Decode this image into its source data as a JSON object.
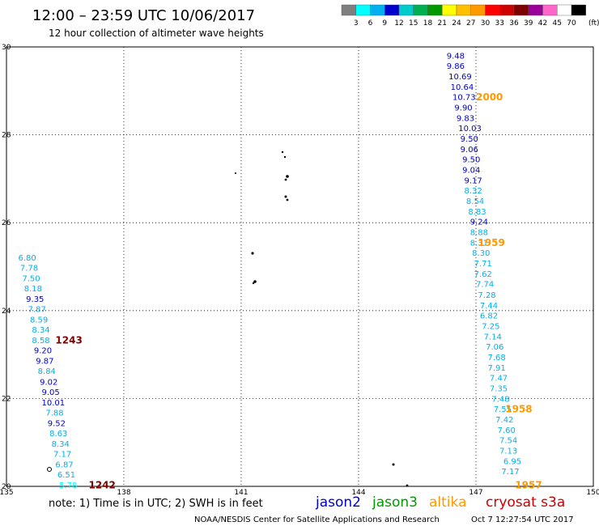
{
  "header": {
    "title": "12:00 – 23:59 UTC 10/06/2017",
    "subtitle": "12 hour collection of altimeter wave heights"
  },
  "color_scale": {
    "labels": [
      "3",
      "6",
      "9",
      "12",
      "15",
      "18",
      "21",
      "24",
      "27",
      "30",
      "33",
      "36",
      "39",
      "42",
      "45",
      "70"
    ],
    "unit": "(ft)",
    "colors": [
      "#7f7f7f",
      "#00ffff",
      "#00b0f0",
      "#0000cc",
      "#00cccc",
      "#00b050",
      "#009900",
      "#ffff00",
      "#ffc000",
      "#ff9900",
      "#ff0000",
      "#cc0000",
      "#7f0000",
      "#990099",
      "#ff66cc",
      "#ffffff",
      "#000000"
    ]
  },
  "footer": {
    "note": "note:  1) Time is in UTC; 2) SWH is in feet",
    "legend": [
      {
        "name": "jason2",
        "color": "#0000cc"
      },
      {
        "name": "jason3",
        "color": "#009900"
      },
      {
        "name": "altika",
        "color": "#ff9900"
      },
      {
        "name": "cryosat s3a",
        "color": "#cc0000"
      }
    ],
    "credit": "NOAA/NESDIS Center for Satellite Applications and Research",
    "timestamp": "Oct  7 12:27:54 UTC 2017"
  },
  "chart_data": {
    "type": "scatter",
    "xlim": [
      135,
      150
    ],
    "ylim": [
      20,
      30
    ],
    "x_ticks": [
      135,
      138,
      141,
      144,
      147,
      150
    ],
    "y_ticks": [
      20,
      22,
      24,
      26,
      28,
      30
    ],
    "grid": true,
    "track_right": {
      "points": [
        {
          "x": 146.25,
          "y": 29.8,
          "v": "9.48",
          "c": "#0000cc"
        },
        {
          "x": 146.25,
          "y": 29.57,
          "v": "9.86",
          "c": "#0000cc"
        },
        {
          "x": 146.3,
          "y": 29.33,
          "v": "10.69",
          "c": "#0000cc"
        },
        {
          "x": 146.35,
          "y": 29.09,
          "v": "10.64",
          "c": "#0000cc"
        },
        {
          "x": 146.4,
          "y": 28.86,
          "v": "10.73",
          "c": "#0000cc"
        },
        {
          "x": 146.45,
          "y": 28.62,
          "v": "9.90",
          "c": "#0000cc"
        },
        {
          "x": 146.5,
          "y": 28.38,
          "v": "9.83",
          "c": "#0000cc"
        },
        {
          "x": 146.55,
          "y": 28.15,
          "v": "10.03",
          "c": "#0000cc"
        },
        {
          "x": 146.6,
          "y": 27.91,
          "v": "9.50",
          "c": "#0000cc"
        },
        {
          "x": 146.6,
          "y": 27.67,
          "v": "9.06",
          "c": "#0000cc"
        },
        {
          "x": 146.65,
          "y": 27.44,
          "v": "9.50",
          "c": "#0000cc"
        },
        {
          "x": 146.65,
          "y": 27.2,
          "v": "9.04",
          "c": "#0000cc"
        },
        {
          "x": 146.7,
          "y": 26.96,
          "v": "9.17",
          "c": "#0000cc"
        },
        {
          "x": 146.7,
          "y": 26.73,
          "v": "8.32",
          "c": "#00b0f0"
        },
        {
          "x": 146.75,
          "y": 26.49,
          "v": "8.54",
          "c": "#00b0f0"
        },
        {
          "x": 146.8,
          "y": 26.25,
          "v": "8.83",
          "c": "#00b0f0"
        },
        {
          "x": 146.85,
          "y": 26.02,
          "v": "9.24",
          "c": "#0000cc"
        },
        {
          "x": 146.85,
          "y": 25.78,
          "v": "8.88",
          "c": "#00b0f0"
        },
        {
          "x": 146.85,
          "y": 25.54,
          "v": "8.31",
          "c": "#00b0f0"
        },
        {
          "x": 146.9,
          "y": 25.31,
          "v": "8.30",
          "c": "#00b0f0"
        },
        {
          "x": 146.95,
          "y": 25.07,
          "v": "7.71",
          "c": "#00b0f0"
        },
        {
          "x": 146.95,
          "y": 24.83,
          "v": "7.62",
          "c": "#00b0f0"
        },
        {
          "x": 147.0,
          "y": 24.6,
          "v": "7.74",
          "c": "#00b0f0"
        },
        {
          "x": 147.05,
          "y": 24.36,
          "v": "7.28",
          "c": "#00b0f0"
        },
        {
          "x": 147.1,
          "y": 24.12,
          "v": "7.44",
          "c": "#00b0f0"
        },
        {
          "x": 147.1,
          "y": 23.89,
          "v": "6.82",
          "c": "#00b0f0"
        },
        {
          "x": 147.15,
          "y": 23.65,
          "v": "7.25",
          "c": "#00b0f0"
        },
        {
          "x": 147.2,
          "y": 23.41,
          "v": "7.14",
          "c": "#00b0f0"
        },
        {
          "x": 147.25,
          "y": 23.18,
          "v": "7.06",
          "c": "#00b0f0"
        },
        {
          "x": 147.3,
          "y": 22.94,
          "v": "7.68",
          "c": "#00b0f0"
        },
        {
          "x": 147.3,
          "y": 22.7,
          "v": "7.91",
          "c": "#00b0f0"
        },
        {
          "x": 147.35,
          "y": 22.47,
          "v": "7.47",
          "c": "#00b0f0"
        },
        {
          "x": 147.35,
          "y": 22.23,
          "v": "7.35",
          "c": "#00b0f0"
        },
        {
          "x": 147.4,
          "y": 21.99,
          "v": "7.48",
          "c": "#00b0f0"
        },
        {
          "x": 147.45,
          "y": 21.76,
          "v": "7.55",
          "c": "#00b0f0"
        },
        {
          "x": 147.5,
          "y": 21.52,
          "v": "7.42",
          "c": "#00b0f0"
        },
        {
          "x": 147.55,
          "y": 21.28,
          "v": "7.60",
          "c": "#00b0f0"
        },
        {
          "x": 147.6,
          "y": 21.05,
          "v": "7.54",
          "c": "#00b0f0"
        },
        {
          "x": 147.6,
          "y": 20.81,
          "v": "7.13",
          "c": "#00b0f0"
        },
        {
          "x": 147.7,
          "y": 20.57,
          "v": "6.95",
          "c": "#00b0f0"
        },
        {
          "x": 147.65,
          "y": 20.34,
          "v": "7.17",
          "c": "#00b0f0"
        }
      ]
    },
    "track_left": {
      "points": [
        {
          "x": 135.3,
          "y": 25.2,
          "v": "6.80",
          "c": "#00b0f0"
        },
        {
          "x": 135.35,
          "y": 24.97,
          "v": "7.78",
          "c": "#00b0f0"
        },
        {
          "x": 135.4,
          "y": 24.73,
          "v": "7.50",
          "c": "#00b0f0"
        },
        {
          "x": 135.45,
          "y": 24.5,
          "v": "8.18",
          "c": "#00b0f0"
        },
        {
          "x": 135.5,
          "y": 24.26,
          "v": "9.35",
          "c": "#0000cc"
        },
        {
          "x": 135.55,
          "y": 24.03,
          "v": "7.87",
          "c": "#00b0f0"
        },
        {
          "x": 135.6,
          "y": 23.79,
          "v": "8.59",
          "c": "#00b0f0"
        },
        {
          "x": 135.65,
          "y": 23.56,
          "v": "8.34",
          "c": "#00b0f0"
        },
        {
          "x": 135.65,
          "y": 23.32,
          "v": "8.58",
          "c": "#00b0f0"
        },
        {
          "x": 135.7,
          "y": 23.09,
          "v": "9.20",
          "c": "#0000cc"
        },
        {
          "x": 135.75,
          "y": 22.85,
          "v": "9.87",
          "c": "#0000cc"
        },
        {
          "x": 135.8,
          "y": 22.62,
          "v": "8.84",
          "c": "#00b0f0"
        },
        {
          "x": 135.85,
          "y": 22.38,
          "v": "9.02",
          "c": "#0000cc"
        },
        {
          "x": 135.9,
          "y": 22.15,
          "v": "9.05",
          "c": "#0000cc"
        },
        {
          "x": 135.9,
          "y": 21.91,
          "v": "10.01",
          "c": "#0000cc"
        },
        {
          "x": 136.0,
          "y": 21.68,
          "v": "7.88",
          "c": "#00b0f0"
        },
        {
          "x": 136.05,
          "y": 21.44,
          "v": "9.52",
          "c": "#0000cc"
        },
        {
          "x": 136.1,
          "y": 21.21,
          "v": "8.63",
          "c": "#00b0f0"
        },
        {
          "x": 136.15,
          "y": 20.97,
          "v": "8.34",
          "c": "#00b0f0"
        },
        {
          "x": 136.2,
          "y": 20.74,
          "v": "7.17",
          "c": "#00b0f0"
        },
        {
          "x": 136.25,
          "y": 20.5,
          "v": "6.87",
          "c": "#00b0f0"
        },
        {
          "x": 136.3,
          "y": 20.27,
          "v": "6.51",
          "c": "#00b0f0"
        },
        {
          "x": 136.35,
          "y": 20.03,
          "v": "5.78",
          "c": "#00ffff"
        }
      ]
    },
    "time_labels": [
      {
        "text": "2000",
        "x": 147.0,
        "y": 28.86,
        "color": "#ff9900"
      },
      {
        "text": "1959",
        "x": 147.05,
        "y": 25.54,
        "color": "#ff9900"
      },
      {
        "text": "1958",
        "x": 147.75,
        "y": 21.76,
        "color": "#ff9900"
      },
      {
        "text": "1957",
        "x": 148.0,
        "y": 20.03,
        "color": "#ff9900"
      },
      {
        "text": "1243",
        "x": 136.25,
        "y": 23.32,
        "color": "#7f0000"
      },
      {
        "text": "1242",
        "x": 137.1,
        "y": 20.03,
        "color": "#7f0000"
      }
    ]
  }
}
